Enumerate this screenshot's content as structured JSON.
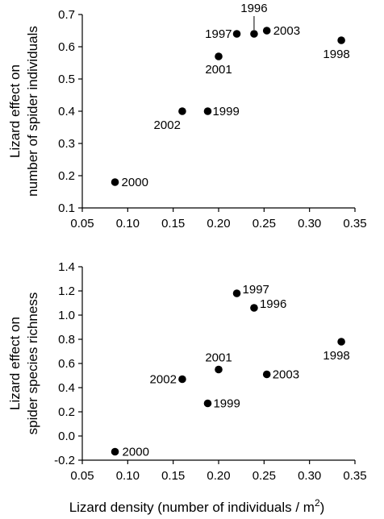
{
  "chart_data": [
    {
      "type": "scatter",
      "ylabel_lines": [
        "Lizard effect on",
        "number of spider individuals"
      ],
      "xlim": [
        0.05,
        0.35
      ],
      "ylim": [
        0.1,
        0.7
      ],
      "xticks": [
        "0.05",
        "0.10",
        "0.15",
        "0.20",
        "0.25",
        "0.30",
        "0.35"
      ],
      "yticks": [
        "0.1",
        "0.2",
        "0.3",
        "0.4",
        "0.5",
        "0.6",
        "0.7"
      ],
      "points": [
        {
          "label": "2000",
          "x": 0.086,
          "y": 0.18
        },
        {
          "label": "2002",
          "x": 0.16,
          "y": 0.4
        },
        {
          "label": "1999",
          "x": 0.188,
          "y": 0.4
        },
        {
          "label": "2001",
          "x": 0.2,
          "y": 0.57
        },
        {
          "label": "1997",
          "x": 0.22,
          "y": 0.64
        },
        {
          "label": "1996",
          "x": 0.239,
          "y": 0.64
        },
        {
          "label": "2003",
          "x": 0.253,
          "y": 0.65
        },
        {
          "label": "1998",
          "x": 0.335,
          "y": 0.62
        }
      ]
    },
    {
      "type": "scatter",
      "ylabel_lines": [
        "Lizard effect on",
        "spider species richness"
      ],
      "xlabel": "Lizard density (number of individuals / m",
      "xlabel_superscript": "2",
      "xlabel_close": ")",
      "xlim": [
        0.05,
        0.35
      ],
      "ylim": [
        -0.2,
        1.4
      ],
      "xticks": [
        "0.05",
        "0.10",
        "0.15",
        "0.20",
        "0.25",
        "0.30",
        "0.35"
      ],
      "yticks": [
        "-0.2",
        "0.0",
        "0.2",
        "0.4",
        "0.6",
        "0.8",
        "1.0",
        "1.2",
        "1.4"
      ],
      "points": [
        {
          "label": "2000",
          "x": 0.086,
          "y": -0.13
        },
        {
          "label": "2002",
          "x": 0.16,
          "y": 0.47
        },
        {
          "label": "1999",
          "x": 0.188,
          "y": 0.27
        },
        {
          "label": "2001",
          "x": 0.2,
          "y": 0.55
        },
        {
          "label": "1997",
          "x": 0.22,
          "y": 1.18
        },
        {
          "label": "1996",
          "x": 0.239,
          "y": 1.06
        },
        {
          "label": "2003",
          "x": 0.253,
          "y": 0.51
        },
        {
          "label": "1998",
          "x": 0.335,
          "y": 0.78
        }
      ]
    }
  ]
}
